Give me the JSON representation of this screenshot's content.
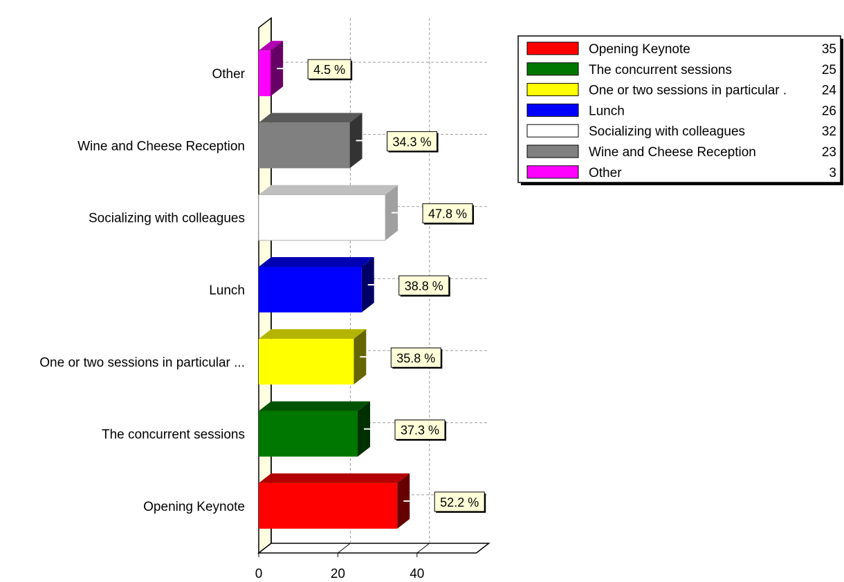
{
  "chart_data": {
    "type": "bar",
    "orientation": "horizontal",
    "three_d": true,
    "grid": true,
    "legend_position": "top-right",
    "categories": [
      "Opening Keynote",
      "The concurrent sessions",
      "One or two sessions in particular ...",
      "Lunch",
      "Socializing with colleagues",
      "Wine and Cheese Reception",
      "Other"
    ],
    "values": [
      35,
      25,
      24,
      26,
      32,
      23,
      3
    ],
    "percent_labels": [
      "52.2 %",
      "37.3 %",
      "35.8 %",
      "38.8 %",
      "47.8 %",
      "34.3 %",
      "4.5 %"
    ],
    "colors": [
      "#ff0000",
      "#007700",
      "#ffff00",
      "#0000ff",
      "#ffffff",
      "#808080",
      "#ff00ff"
    ],
    "xlim": [
      0,
      55
    ],
    "xticks": [
      0,
      20,
      40
    ],
    "legend": [
      {
        "label": "Opening Keynote",
        "value": "35"
      },
      {
        "label": "The concurrent sessions",
        "value": "25"
      },
      {
        "label": "One or two sessions in particular .",
        "value": "24"
      },
      {
        "label": "Lunch",
        "value": "26"
      },
      {
        "label": "Socializing with colleagues",
        "value": "32"
      },
      {
        "label": "Wine and Cheese Reception",
        "value": "23"
      },
      {
        "label": "Other",
        "value": "3"
      }
    ]
  }
}
